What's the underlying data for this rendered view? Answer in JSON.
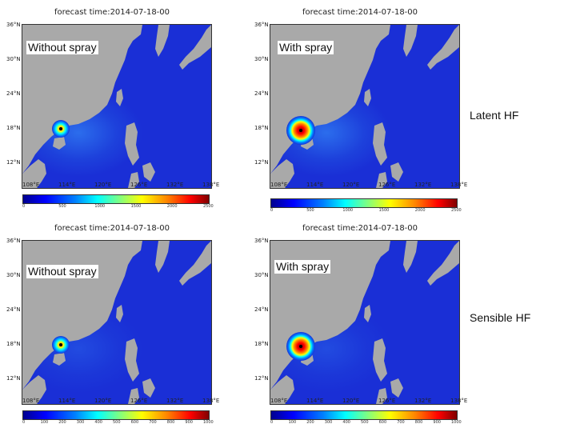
{
  "panels": [
    {
      "id": "p1",
      "title": "forecast time:2014-07-18-00",
      "label": "Without spray",
      "storm": "small",
      "colorbar": [
        "0",
        "500",
        "1000",
        "1500",
        "2000",
        "2500"
      ]
    },
    {
      "id": "p2",
      "title": "forecast time:2014-07-18-00",
      "label": "With spray",
      "storm": "large",
      "colorbar": [
        "0",
        "500",
        "1000",
        "1500",
        "2000",
        "2500"
      ]
    },
    {
      "id": "p3",
      "title": "forecast time:2014-07-18-00",
      "label": "Without spray",
      "storm": "small",
      "colorbar": [
        "0",
        "100",
        "200",
        "300",
        "400",
        "500",
        "600",
        "700",
        "800",
        "900",
        "1000"
      ]
    },
    {
      "id": "p4",
      "title": "forecast time:2014-07-18-00",
      "label": "With spray",
      "storm": "large",
      "colorbar": [
        "0",
        "100",
        "200",
        "300",
        "400",
        "500",
        "600",
        "700",
        "800",
        "900",
        "1000"
      ]
    }
  ],
  "lat_ticks": [
    "36°N",
    "30°N",
    "24°N",
    "18°N",
    "12°N"
  ],
  "lon_ticks": [
    "108°E",
    "114°E",
    "120°E",
    "126°E",
    "132°E",
    "138°E"
  ],
  "row_labels": {
    "latent": "Latent HF",
    "sensible": "Sensible HF"
  },
  "colors": {
    "ocean": "#1a2fd6",
    "land": "#a9a9a9"
  }
}
